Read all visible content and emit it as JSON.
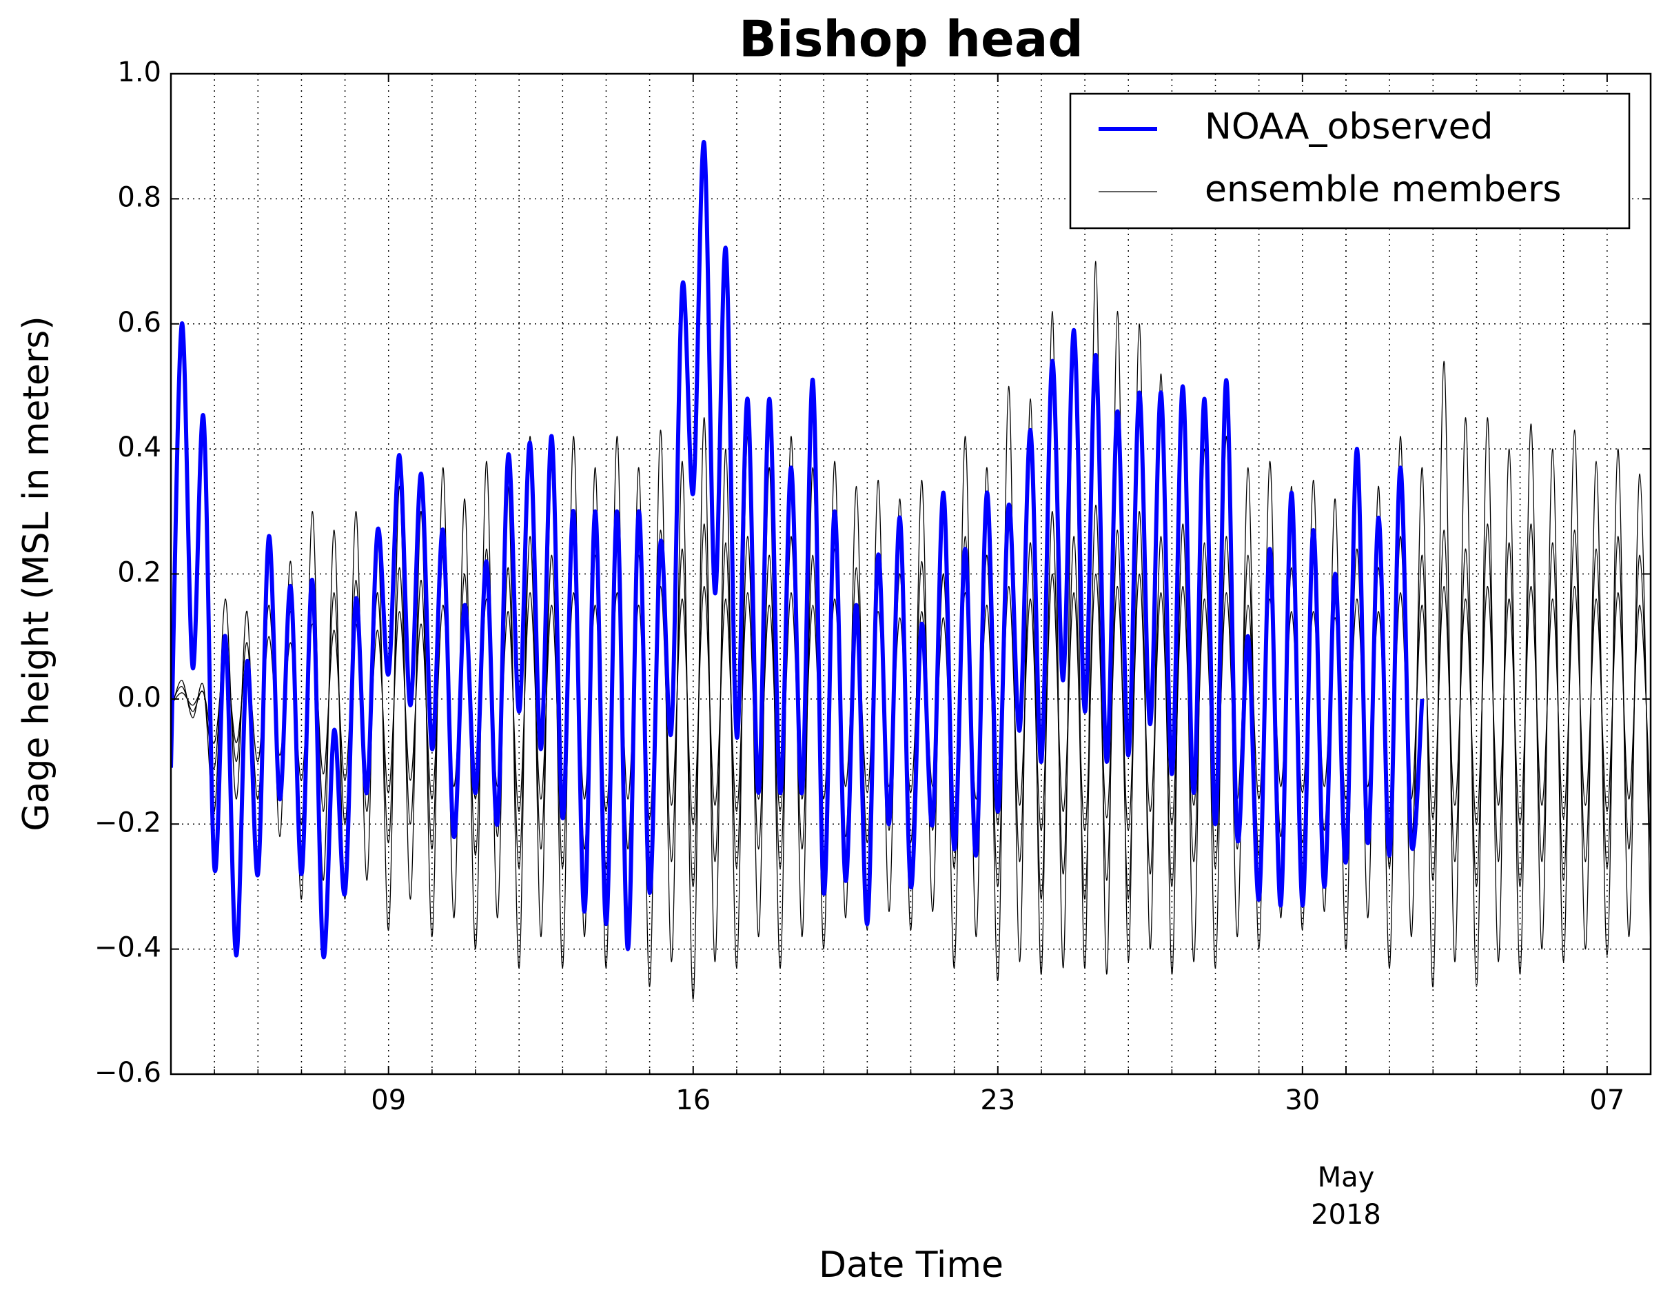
{
  "chart_data": {
    "type": "line",
    "title": "Bishop head",
    "xlabel": "Date Time",
    "ylabel": "Gage height (MSL in meters)",
    "xlim": [
      "2018-04-04 00:00",
      "2018-05-08 00:00"
    ],
    "ylim": [
      -0.6,
      1.0
    ],
    "yticks": [
      {
        "value": -0.6,
        "label": "−0.6"
      },
      {
        "value": -0.4,
        "label": "−0.4"
      },
      {
        "value": -0.2,
        "label": "−0.2"
      },
      {
        "value": 0.0,
        "label": "0.0"
      },
      0.2,
      0.4,
      0.6,
      0.8,
      {
        "value": 1.0,
        "label": "1.0"
      }
    ],
    "xticks": [
      {
        "value": "2018-04-09",
        "label": "09"
      },
      {
        "value": "2018-04-16",
        "label": "16"
      },
      {
        "value": "2018-04-23",
        "label": "23"
      },
      {
        "value": "2018-04-30",
        "label": "30"
      },
      {
        "value": "2018-05-07",
        "label": "07"
      }
    ],
    "xticks_secondary": [
      {
        "value": "2018-05-01",
        "label": [
          "May",
          "2018"
        ]
      }
    ],
    "xminorticks": [
      "2018-04-05",
      "2018-04-06",
      "2018-04-07",
      "2018-04-08",
      "2018-04-10",
      "2018-04-11",
      "2018-04-12",
      "2018-04-13",
      "2018-04-14",
      "2018-04-15",
      "2018-04-17",
      "2018-04-18",
      "2018-04-19",
      "2018-04-20",
      "2018-04-21",
      "2018-04-22",
      "2018-04-24",
      "2018-04-25",
      "2018-04-26",
      "2018-04-27",
      "2018-04-28",
      "2018-04-29",
      "2018-05-01",
      "2018-05-02",
      "2018-05-03",
      "2018-05-04",
      "2018-05-05",
      "2018-05-06"
    ],
    "grid": true,
    "legend": "upper right",
    "x": [
      "2018-04-04 00:00",
      "2018-04-04 06:00",
      "2018-04-04 12:00",
      "2018-04-04 18:00",
      "2018-04-05 00:00",
      "2018-04-05 06:00",
      "2018-04-05 12:00",
      "2018-04-05 18:00",
      "2018-04-06 00:00",
      "2018-04-06 06:00",
      "2018-04-06 12:00",
      "2018-04-06 18:00",
      "2018-04-07 00:00",
      "2018-04-07 06:00",
      "2018-04-07 12:00",
      "2018-04-07 18:00",
      "2018-04-08 00:00",
      "2018-04-08 06:00",
      "2018-04-08 12:00",
      "2018-04-08 18:00",
      "2018-04-09 00:00",
      "2018-04-09 06:00",
      "2018-04-09 12:00",
      "2018-04-09 18:00",
      "2018-04-10 00:00",
      "2018-04-10 06:00",
      "2018-04-10 12:00",
      "2018-04-10 18:00",
      "2018-04-11 00:00",
      "2018-04-11 06:00",
      "2018-04-11 12:00",
      "2018-04-11 18:00",
      "2018-04-12 00:00",
      "2018-04-12 06:00",
      "2018-04-12 12:00",
      "2018-04-12 18:00",
      "2018-04-13 00:00",
      "2018-04-13 06:00",
      "2018-04-13 12:00",
      "2018-04-13 18:00",
      "2018-04-14 00:00",
      "2018-04-14 06:00",
      "2018-04-14 12:00",
      "2018-04-14 18:00",
      "2018-04-15 00:00",
      "2018-04-15 06:00",
      "2018-04-15 12:00",
      "2018-04-15 18:00",
      "2018-04-16 00:00",
      "2018-04-16 06:00",
      "2018-04-16 12:00",
      "2018-04-16 18:00",
      "2018-04-17 00:00",
      "2018-04-17 06:00",
      "2018-04-17 12:00",
      "2018-04-17 18:00",
      "2018-04-18 00:00",
      "2018-04-18 06:00",
      "2018-04-18 12:00",
      "2018-04-18 18:00",
      "2018-04-19 00:00",
      "2018-04-19 06:00",
      "2018-04-19 12:00",
      "2018-04-19 18:00",
      "2018-04-20 00:00",
      "2018-04-20 06:00",
      "2018-04-20 12:00",
      "2018-04-20 18:00",
      "2018-04-21 00:00",
      "2018-04-21 06:00",
      "2018-04-21 12:00",
      "2018-04-21 18:00",
      "2018-04-22 00:00",
      "2018-04-22 06:00",
      "2018-04-22 12:00",
      "2018-04-22 18:00",
      "2018-04-23 00:00",
      "2018-04-23 06:00",
      "2018-04-23 12:00",
      "2018-04-23 18:00",
      "2018-04-24 00:00",
      "2018-04-24 06:00",
      "2018-04-24 12:00",
      "2018-04-24 18:00",
      "2018-04-25 00:00",
      "2018-04-25 06:00",
      "2018-04-25 12:00",
      "2018-04-25 18:00",
      "2018-04-26 00:00",
      "2018-04-26 06:00",
      "2018-04-26 12:00",
      "2018-04-26 18:00",
      "2018-04-27 00:00",
      "2018-04-27 06:00",
      "2018-04-27 12:00",
      "2018-04-27 18:00",
      "2018-04-28 00:00",
      "2018-04-28 06:00",
      "2018-04-28 12:00",
      "2018-04-28 18:00",
      "2018-04-29 00:00",
      "2018-04-29 06:00",
      "2018-04-29 12:00",
      "2018-04-29 18:00",
      "2018-04-30 00:00",
      "2018-04-30 06:00",
      "2018-04-30 12:00",
      "2018-04-30 18:00",
      "2018-05-01 00:00",
      "2018-05-01 06:00",
      "2018-05-01 12:00",
      "2018-05-01 18:00",
      "2018-05-02 00:00",
      "2018-05-02 06:00",
      "2018-05-02 12:00",
      "2018-05-02 18:00",
      "2018-05-03 00:00",
      "2018-05-03 06:00",
      "2018-05-03 12:00",
      "2018-05-03 18:00",
      "2018-05-04 00:00",
      "2018-05-04 06:00",
      "2018-05-04 12:00",
      "2018-05-04 18:00",
      "2018-05-05 00:00",
      "2018-05-05 06:00",
      "2018-05-05 12:00",
      "2018-05-05 18:00",
      "2018-05-06 00:00",
      "2018-05-06 06:00",
      "2018-05-06 12:00",
      "2018-05-06 18:00",
      "2018-05-07 00:00",
      "2018-05-07 06:00",
      "2018-05-07 12:00",
      "2018-05-07 18:00",
      "2018-05-08 00:00"
    ],
    "series": [
      {
        "name": "NOAA_observed",
        "color": "#0000ff",
        "values": [
          -0.11,
          0.6,
          0.05,
          0.45,
          -0.27,
          0.1,
          -0.41,
          0.06,
          -0.28,
          0.26,
          -0.16,
          0.18,
          -0.28,
          0.19,
          -0.41,
          -0.05,
          -0.31,
          0.16,
          -0.15,
          0.27,
          0.04,
          0.39,
          -0.01,
          0.36,
          -0.08,
          0.27,
          -0.22,
          0.15,
          -0.15,
          0.22,
          -0.2,
          0.39,
          -0.02,
          0.41,
          -0.08,
          0.42,
          -0.19,
          0.3,
          -0.34,
          0.3,
          -0.36,
          0.3,
          -0.4,
          0.3,
          -0.31,
          0.25,
          -0.05,
          0.66,
          0.33,
          0.89,
          0.17,
          0.72,
          -0.06,
          0.48,
          -0.15,
          0.48,
          -0.15,
          0.37,
          -0.15,
          0.51,
          -0.31,
          0.3,
          -0.29,
          0.15,
          -0.36,
          0.23,
          -0.2,
          0.29,
          -0.3,
          0.12,
          -0.2,
          0.33,
          -0.24,
          0.24,
          -0.25,
          0.33,
          -0.18,
          0.31,
          -0.05,
          0.43,
          -0.1,
          0.54,
          0.03,
          0.59,
          -0.02,
          0.55,
          -0.1,
          0.46,
          -0.09,
          0.49,
          -0.04,
          0.49,
          -0.12,
          0.5,
          -0.15,
          0.48,
          -0.2,
          0.51,
          -0.22,
          0.1,
          -0.32,
          0.24,
          -0.33,
          0.33,
          -0.33,
          0.27,
          -0.3,
          0.2,
          -0.26,
          0.4,
          -0.23,
          0.29,
          -0.25,
          0.37,
          -0.23,
          0.0,
          null,
          null,
          null,
          null,
          null,
          null,
          null,
          null,
          null,
          null,
          null,
          null,
          null,
          null,
          null,
          null,
          null,
          null,
          null,
          null,
          null
        ]
      },
      {
        "name": "ensemble members",
        "color": "#000000",
        "members": [
          [
            -0.01,
            0.01,
            -0.01,
            0.01,
            -0.07,
            0.07,
            -0.07,
            0.06,
            -0.1,
            0.1,
            -0.09,
            0.09,
            -0.13,
            0.12,
            -0.12,
            0.11,
            -0.13,
            0.12,
            -0.12,
            0.11,
            -0.15,
            0.14,
            -0.13,
            0.12,
            -0.16,
            0.15,
            -0.14,
            0.13,
            -0.16,
            0.16,
            -0.14,
            0.14,
            -0.18,
            0.17,
            -0.16,
            0.15,
            -0.18,
            0.17,
            -0.16,
            0.15,
            -0.18,
            0.17,
            -0.16,
            0.15,
            -0.19,
            0.18,
            -0.17,
            0.16,
            -0.2,
            0.18,
            -0.17,
            0.16,
            -0.18,
            0.17,
            -0.16,
            0.15,
            -0.18,
            0.17,
            -0.16,
            0.15,
            -0.16,
            0.16,
            -0.14,
            0.14,
            -0.15,
            0.14,
            -0.14,
            0.13,
            -0.15,
            0.14,
            -0.14,
            0.13,
            -0.18,
            0.17,
            -0.16,
            0.15,
            -0.2,
            0.18,
            -0.17,
            0.16,
            -0.21,
            0.2,
            -0.18,
            0.17,
            -0.21,
            0.2,
            -0.19,
            0.18,
            -0.21,
            0.2,
            -0.18,
            0.17,
            -0.2,
            0.18,
            -0.17,
            0.16,
            -0.18,
            0.17,
            -0.16,
            0.15,
            -0.16,
            0.16,
            -0.14,
            0.14,
            -0.15,
            0.14,
            -0.14,
            0.13,
            -0.16,
            0.16,
            -0.14,
            0.14,
            -0.18,
            0.17,
            -0.16,
            0.15,
            -0.19,
            0.18,
            -0.17,
            0.16,
            -0.2,
            0.18,
            -0.17,
            0.16,
            -0.2,
            0.18,
            -0.17,
            0.16,
            -0.19,
            0.18,
            -0.17,
            0.16,
            -0.18,
            0.17,
            -0.16,
            0.15,
            -0.18
          ],
          [
            -0.01,
            0.02,
            -0.02,
            0.01,
            -0.11,
            0.1,
            -0.1,
            0.09,
            -0.16,
            0.15,
            -0.14,
            0.14,
            -0.2,
            0.19,
            -0.18,
            0.17,
            -0.2,
            0.19,
            -0.18,
            0.17,
            -0.23,
            0.21,
            -0.2,
            0.19,
            -0.24,
            0.23,
            -0.22,
            0.2,
            -0.25,
            0.24,
            -0.22,
            0.21,
            -0.27,
            0.26,
            -0.24,
            0.23,
            -0.27,
            0.26,
            -0.24,
            0.23,
            -0.27,
            0.26,
            -0.24,
            0.23,
            -0.29,
            0.27,
            -0.26,
            0.24,
            -0.3,
            0.28,
            -0.26,
            0.25,
            -0.27,
            0.26,
            -0.24,
            0.23,
            -0.27,
            0.26,
            -0.24,
            0.23,
            -0.25,
            0.24,
            -0.22,
            0.21,
            -0.23,
            0.22,
            -0.21,
            0.2,
            -0.23,
            0.22,
            -0.21,
            0.2,
            -0.27,
            0.26,
            -0.24,
            0.23,
            -0.3,
            0.28,
            -0.26,
            0.25,
            -0.32,
            0.3,
            -0.28,
            0.26,
            -0.32,
            0.31,
            -0.29,
            0.27,
            -0.32,
            0.3,
            -0.28,
            0.26,
            -0.3,
            0.28,
            -0.26,
            0.25,
            -0.27,
            0.26,
            -0.24,
            0.23,
            -0.25,
            0.24,
            -0.22,
            0.21,
            -0.23,
            0.22,
            -0.21,
            0.2,
            -0.25,
            0.24,
            -0.22,
            0.21,
            -0.27,
            0.26,
            -0.24,
            0.23,
            -0.29,
            0.27,
            -0.26,
            0.24,
            -0.3,
            0.28,
            -0.26,
            0.25,
            -0.3,
            0.28,
            -0.26,
            0.25,
            -0.29,
            0.27,
            -0.26,
            0.24,
            -0.27,
            0.26,
            -0.24,
            0.23,
            -0.27
          ],
          [
            -0.02,
            0.03,
            -0.03,
            0.02,
            -0.18,
            0.16,
            -0.16,
            0.14,
            -0.26,
            0.24,
            -0.22,
            0.22,
            -0.32,
            0.3,
            -0.29,
            0.27,
            -0.32,
            0.3,
            -0.29,
            0.27,
            -0.37,
            0.34,
            -0.32,
            0.3,
            -0.38,
            0.37,
            -0.35,
            0.32,
            -0.4,
            0.38,
            -0.35,
            0.34,
            -0.43,
            0.42,
            -0.38,
            0.37,
            -0.43,
            0.42,
            -0.38,
            0.37,
            -0.43,
            0.42,
            -0.38,
            0.37,
            -0.46,
            0.43,
            -0.42,
            0.38,
            -0.48,
            0.45,
            -0.42,
            0.4,
            -0.43,
            0.42,
            -0.38,
            0.37,
            -0.43,
            0.42,
            -0.38,
            0.37,
            -0.4,
            0.38,
            -0.35,
            0.34,
            -0.37,
            0.35,
            -0.34,
            0.32,
            -0.37,
            0.35,
            -0.34,
            0.32,
            -0.43,
            0.42,
            -0.38,
            0.37,
            -0.45,
            0.5,
            -0.42,
            0.48,
            -0.44,
            0.62,
            -0.43,
            0.58,
            -0.43,
            0.7,
            -0.44,
            0.62,
            -0.42,
            0.6,
            -0.4,
            0.52,
            -0.44,
            0.45,
            -0.42,
            0.4,
            -0.43,
            0.42,
            -0.38,
            0.37,
            -0.4,
            0.38,
            -0.35,
            0.34,
            -0.37,
            0.35,
            -0.34,
            0.32,
            -0.4,
            0.38,
            -0.35,
            0.34,
            -0.43,
            0.42,
            -0.38,
            0.37,
            -0.46,
            0.54,
            -0.42,
            0.45,
            -0.46,
            0.45,
            -0.42,
            0.4,
            -0.44,
            0.44,
            -0.4,
            0.4,
            -0.42,
            0.43,
            -0.4,
            0.38,
            -0.41,
            0.4,
            -0.38,
            0.36,
            -0.4
          ]
        ]
      }
    ]
  }
}
